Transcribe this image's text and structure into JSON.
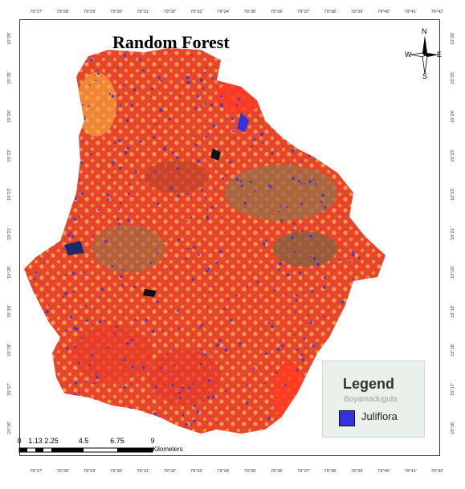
{
  "title": "Random Forest",
  "compass": {
    "n": "N",
    "s": "S",
    "e": "E",
    "w": "W"
  },
  "legend": {
    "title": "Legend",
    "basemap_text": "Boyamadugula",
    "items": [
      {
        "label": "Juliflora",
        "color": "#3333dd"
      }
    ]
  },
  "scale": {
    "ticks": [
      "0",
      "1.13",
      "2.25",
      "4.5",
      "6.75",
      "9"
    ],
    "unit": "Kilometers"
  },
  "graticule": {
    "longitudes": [
      "79°27'",
      "79°28'",
      "79°29'",
      "79°30'",
      "79°31'",
      "79°32'",
      "79°33'",
      "79°34'",
      "79°35'",
      "79°36'",
      "79°37'",
      "79°38'",
      "79°39'",
      "79°40'",
      "79°41'",
      "79°42'"
    ],
    "latitudes": [
      "15°26'",
      "15°25'",
      "15°24'",
      "15°23'",
      "15°22'",
      "15°21'",
      "15°20'",
      "15°19'",
      "15°18'",
      "15°17'",
      "15°16'"
    ]
  },
  "colors": {
    "vegetation_red": "#e8442c",
    "soil_orange": "#f0a040",
    "barren_brown": "#9a7048",
    "juliflora_blue": "#3333dd",
    "water": "#1a2a6a"
  }
}
